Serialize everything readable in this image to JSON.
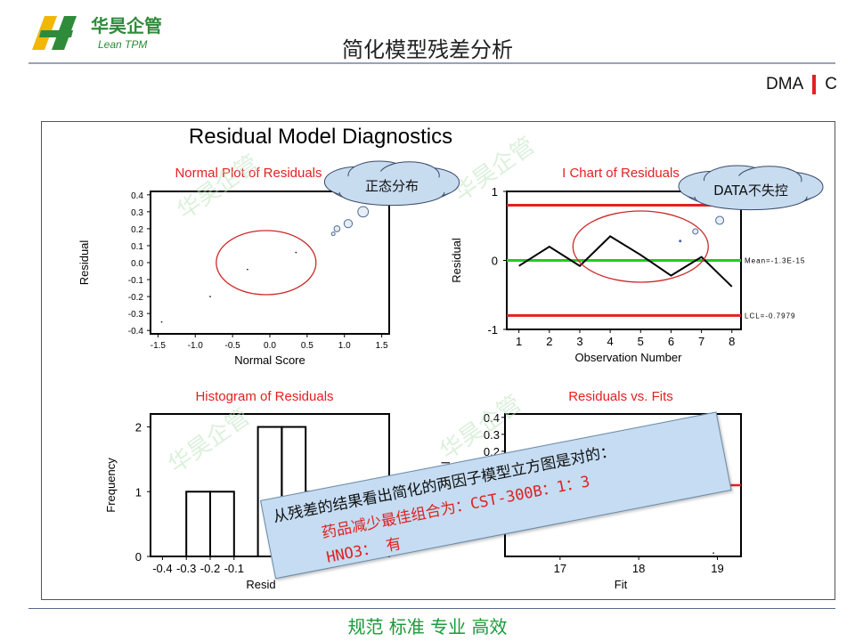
{
  "header": {
    "logo_cn": "华昊企管",
    "logo_en": "Lean TPM",
    "title": "简化模型残差分析",
    "phase_left": "DMA",
    "phase_right": "C"
  },
  "colors": {
    "accent_red": "#e52020",
    "brand_green": "#1a9a3a",
    "logo_yellow": "#f2b705",
    "logo_green": "#2e8b3a"
  },
  "watermark": "华昊企管",
  "callouts": {
    "normal": "正态分布",
    "ichart": "DATA不失控"
  },
  "note": {
    "line1": "从残差的结果看出简化的两因子模型立方图是对的：",
    "line2": "药品减少最佳组合为：CST-300B：1：3",
    "line3": "HNO3： 有"
  },
  "footer": "规范 标准 专业 高效",
  "chart_data": [
    {
      "type": "scatter",
      "id": "normal",
      "title": "Normal Plot of Residuals",
      "xlabel": "Normal Score",
      "ylabel": "Residual",
      "xlim": [
        -1.6,
        1.6
      ],
      "ylim": [
        -0.42,
        0.42
      ],
      "xticks": [
        "-1.5",
        "-1.0",
        "-0.5",
        "0.0",
        "0.5",
        "1.0",
        "1.5"
      ],
      "yticks": [
        "0.4",
        "0.3",
        "0.2",
        "0.1",
        "0.0",
        "-0.1",
        "-0.2",
        "-0.3",
        "-0.4"
      ],
      "points": [
        [
          -1.45,
          -0.35
        ],
        [
          -0.8,
          -0.2
        ],
        [
          -0.3,
          -0.04
        ],
        [
          0.35,
          0.06
        ],
        [
          0.85,
          0.17
        ],
        [
          0.9,
          0.2
        ],
        [
          1.05,
          0.23
        ],
        [
          1.25,
          0.3
        ]
      ]
    },
    {
      "type": "line",
      "id": "ichart",
      "title": "I Chart of Residuals",
      "xlabel": "Observation Number",
      "ylabel": "Residual",
      "xlim": [
        0.6,
        8.3
      ],
      "ylim": [
        -1.0,
        1.0
      ],
      "xticks": [
        "1",
        "2",
        "3",
        "4",
        "5",
        "6",
        "7",
        "8"
      ],
      "yticks": [
        "1",
        "0",
        "-1"
      ],
      "x": [
        1,
        2,
        3,
        4,
        5,
        6,
        7,
        8
      ],
      "y": [
        -0.08,
        0.2,
        -0.08,
        0.35,
        0.08,
        -0.22,
        0.05,
        -0.38
      ],
      "mean_label": "Mean=-1.3E-15",
      "lcl_label": "LCL=-0.7979",
      "ucl": 0.8,
      "lcl": -0.7979,
      "mean": 0.0
    },
    {
      "type": "bar",
      "id": "hist",
      "title": "Histogram of Residuals",
      "ylabel": "Frequency",
      "xlabel": "Resid",
      "xlim": [
        -0.45,
        0.55
      ],
      "ylim": [
        0,
        2.2
      ],
      "xticks": [
        "-0.4",
        "-0.3",
        "-0.2",
        "-0.1"
      ],
      "yticks": [
        "2",
        "1",
        "0"
      ],
      "bins": [
        [
          -0.3,
          -0.2,
          1
        ],
        [
          -0.2,
          -0.1,
          1
        ],
        [
          0.0,
          0.1,
          2
        ],
        [
          0.1,
          0.2,
          2
        ],
        [
          0.2,
          0.3,
          1
        ],
        [
          0.3,
          0.4,
          1
        ]
      ]
    },
    {
      "type": "scatter",
      "id": "fits",
      "title": "Residuals vs. Fits",
      "xlabel": "Fit",
      "ylabel": "ual",
      "xlim": [
        16.3,
        19.3
      ],
      "ylim": [
        -0.42,
        0.42
      ],
      "xticks": [
        "17",
        "18",
        "19"
      ],
      "yticks": [
        "0.4",
        "0.3",
        "0.2",
        "0.1"
      ],
      "points": [
        [
          18.95,
          0.35
        ]
      ]
    }
  ]
}
